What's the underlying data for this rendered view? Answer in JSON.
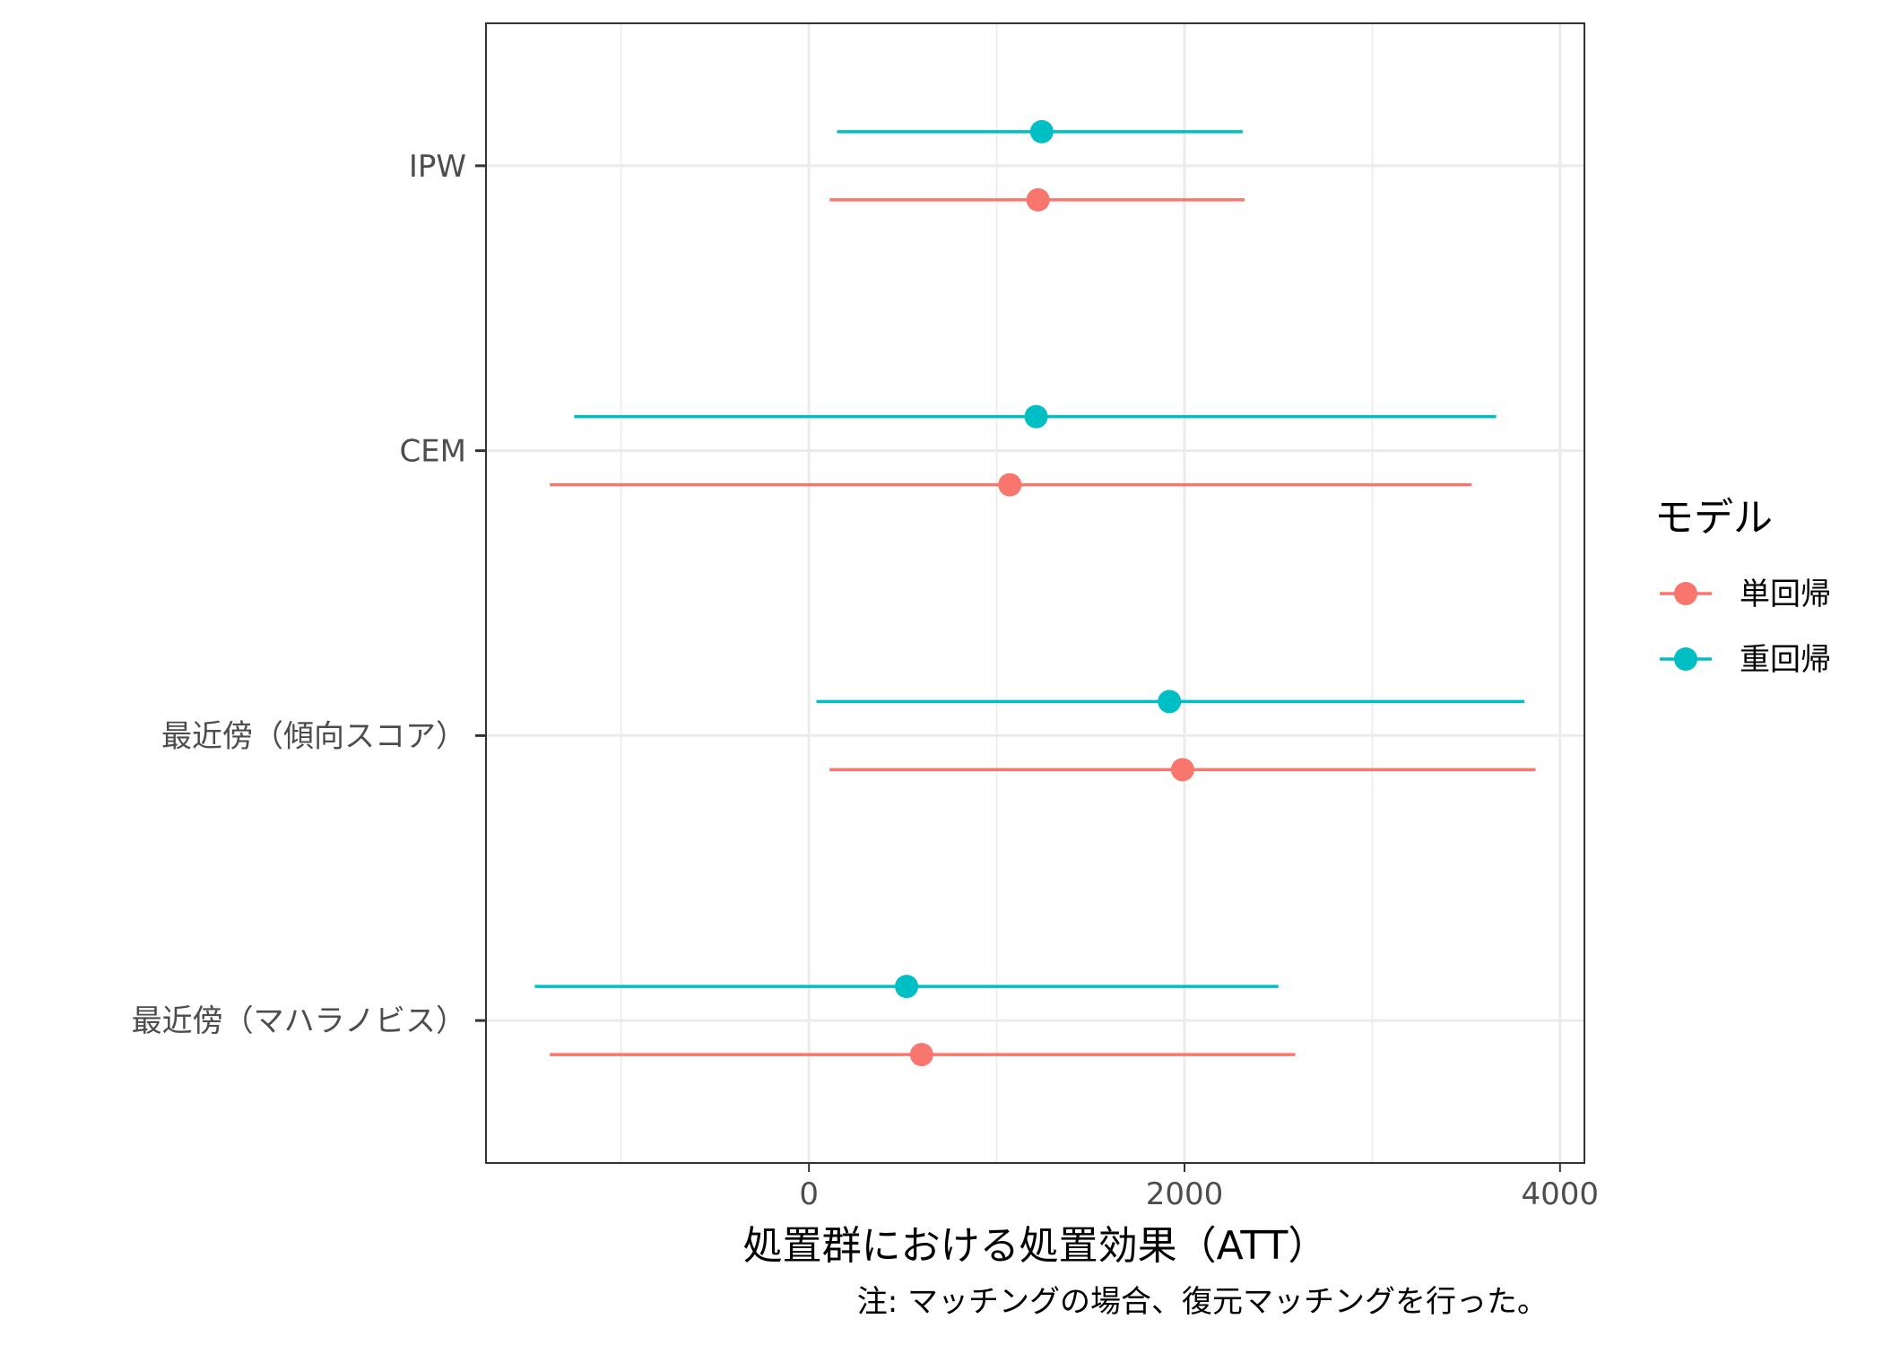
{
  "chart_data": {
    "type": "forest",
    "xlabel": "処置群における処置効果（ATT）",
    "caption": "注: マッチングの場合、復元マッチングを行った。",
    "xlim": [
      -1720,
      4130
    ],
    "x_ticks": [
      0,
      2000,
      4000
    ],
    "x_minor_ticks": [
      -1000,
      1000,
      3000
    ],
    "grid": true,
    "categories": [
      "IPW",
      "CEM",
      "最近傍（傾向スコア）",
      "最近傍（マハラノビス）"
    ],
    "legend": {
      "title": "モデル",
      "position": "right"
    },
    "series": [
      {
        "name": "単回帰",
        "color": "#F8766D",
        "estimates": [
          1220,
          1070,
          1990,
          600
        ],
        "lower": [
          110,
          -1380,
          110,
          -1380
        ],
        "upper": [
          2320,
          3530,
          3870,
          2590
        ]
      },
      {
        "name": "重回帰",
        "color": "#00BFC4",
        "estimates": [
          1240,
          1210,
          1920,
          520
        ],
        "lower": [
          150,
          -1250,
          40,
          -1460
        ],
        "upper": [
          2310,
          3660,
          3810,
          2500
        ]
      }
    ]
  }
}
